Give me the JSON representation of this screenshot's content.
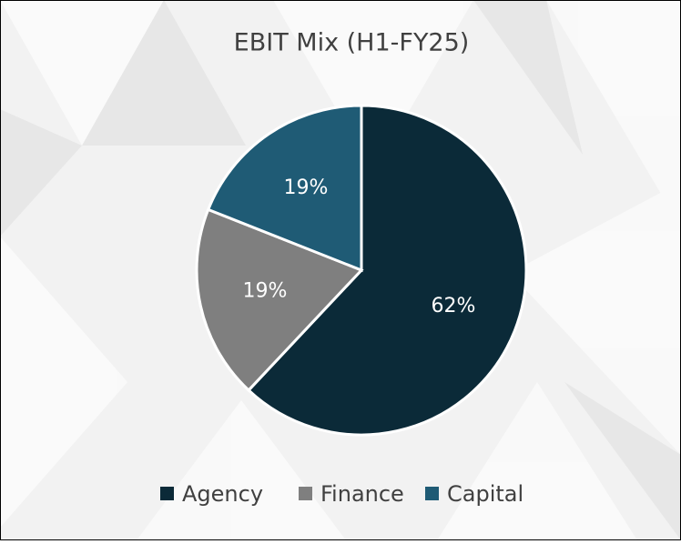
{
  "chart_data": {
    "type": "pie",
    "title": "EBIT Mix (H1-FY25)",
    "categories": [
      "Agency",
      "Finance",
      "Capital"
    ],
    "values": [
      62,
      19,
      19
    ],
    "value_labels": [
      "62%",
      "19%",
      "19%"
    ],
    "colors": [
      "#0b2a38",
      "#7f7f7f",
      "#1f5b75"
    ],
    "legend": "bottom"
  }
}
